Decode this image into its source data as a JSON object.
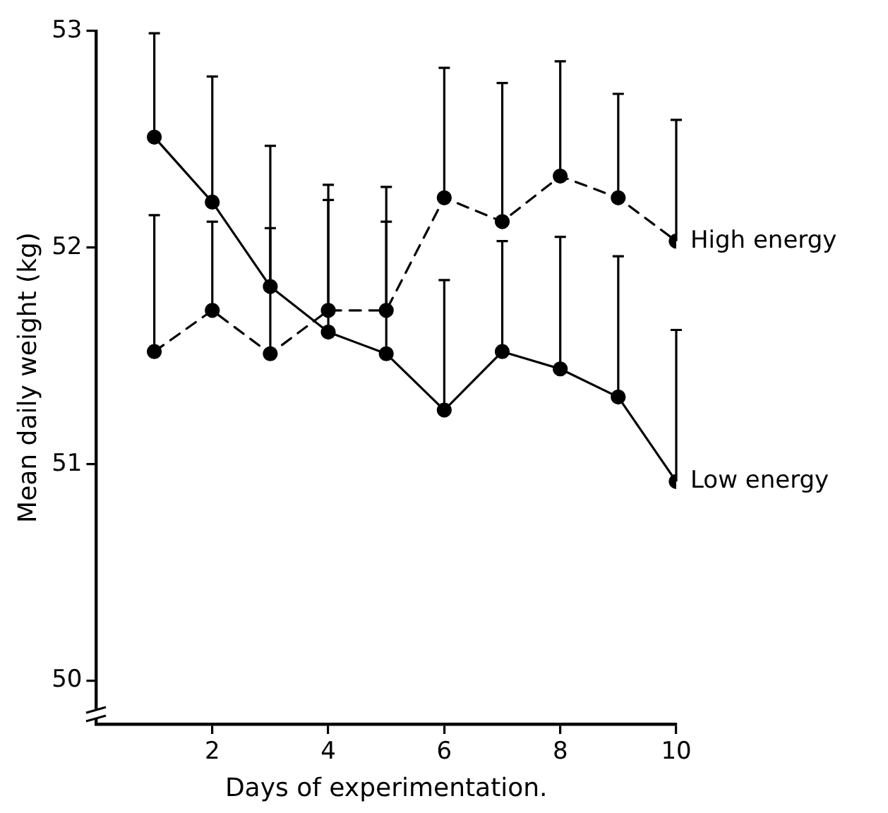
{
  "chart_data": {
    "type": "line",
    "xlabel": "Days of experimentation.",
    "ylabel": "Mean daily weight (kg)",
    "x": [
      1,
      2,
      3,
      4,
      5,
      6,
      7,
      8,
      9,
      10
    ],
    "xlim": [
      0,
      10
    ],
    "xticks": [
      2,
      4,
      6,
      8,
      10
    ],
    "ylim": [
      49.8,
      53
    ],
    "yticks": [
      50,
      51,
      52,
      53
    ],
    "grid": false,
    "legend": false,
    "marker": "circle",
    "series": [
      {
        "name": "High energy",
        "color": "#000000",
        "line_style": "dashed",
        "values": [
          51.52,
          51.71,
          51.51,
          51.71,
          51.71,
          52.23,
          52.12,
          52.33,
          52.23,
          52.03
        ],
        "errors": [
          [
            51.52,
            52.15
          ],
          [
            51.71,
            52.12
          ],
          [
            51.51,
            52.09
          ],
          [
            51.71,
            52.29
          ],
          [
            51.71,
            52.28
          ],
          [
            52.23,
            52.83
          ],
          [
            52.12,
            52.76
          ],
          [
            52.33,
            52.86
          ],
          [
            52.23,
            52.71
          ],
          [
            52.03,
            52.59
          ]
        ]
      },
      {
        "name": "Low energy",
        "color": "#000000",
        "line_style": "solid",
        "values": [
          52.51,
          52.21,
          51.82,
          51.61,
          51.51,
          51.25,
          51.52,
          51.44,
          51.31,
          50.92
        ],
        "errors": [
          [
            52.51,
            52.99
          ],
          [
            52.21,
            52.79
          ],
          [
            51.82,
            52.47
          ],
          [
            51.61,
            52.22
          ],
          [
            51.51,
            52.12
          ],
          [
            51.25,
            51.85
          ],
          [
            51.52,
            52.03
          ],
          [
            51.44,
            52.05
          ],
          [
            51.31,
            51.96
          ],
          [
            50.92,
            51.62
          ]
        ]
      }
    ]
  }
}
